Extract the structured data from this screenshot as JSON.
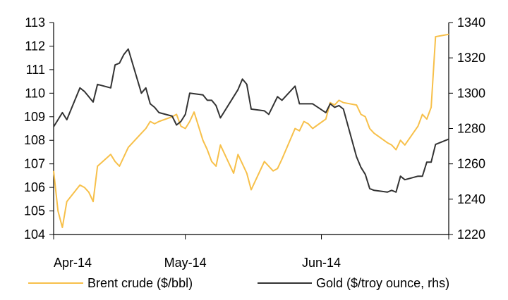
{
  "chart_data": {
    "type": "line",
    "x_ticks": [
      "Apr-14",
      "May-14",
      "Jun-14"
    ],
    "y_left": {
      "min": 104,
      "max": 113,
      "ticks": [
        104,
        105,
        106,
        107,
        108,
        109,
        110,
        111,
        112,
        113
      ]
    },
    "y_right": {
      "min": 1220,
      "max": 1340,
      "ticks": [
        1220,
        1240,
        1260,
        1280,
        1300,
        1320,
        1340
      ]
    },
    "grid": false,
    "legend_position": "bottom",
    "series": [
      {
        "name": "Brent crude ($/bbl)",
        "axis": "left",
        "color": "#f7c04a",
        "points": [
          [
            "2014-04-01",
            106.7
          ],
          [
            "2014-04-02",
            105.0
          ],
          [
            "2014-04-03",
            104.3
          ],
          [
            "2014-04-04",
            105.4
          ],
          [
            "2014-04-07",
            106.1
          ],
          [
            "2014-04-08",
            106.0
          ],
          [
            "2014-04-09",
            105.8
          ],
          [
            "2014-04-10",
            105.4
          ],
          [
            "2014-04-11",
            106.9
          ],
          [
            "2014-04-14",
            107.4
          ],
          [
            "2014-04-15",
            107.1
          ],
          [
            "2014-04-16",
            106.9
          ],
          [
            "2014-04-17",
            107.3
          ],
          [
            "2014-04-18",
            107.7
          ],
          [
            "2014-04-21",
            108.3
          ],
          [
            "2014-04-22",
            108.5
          ],
          [
            "2014-04-23",
            108.8
          ],
          [
            "2014-04-24",
            108.7
          ],
          [
            "2014-04-25",
            108.8
          ],
          [
            "2014-04-28",
            109.0
          ],
          [
            "2014-04-29",
            109.1
          ],
          [
            "2014-04-30",
            108.6
          ],
          [
            "2014-05-01",
            108.5
          ],
          [
            "2014-05-02",
            108.8
          ],
          [
            "2014-05-03",
            109.2
          ],
          [
            "2014-05-05",
            108.0
          ],
          [
            "2014-05-06",
            107.6
          ],
          [
            "2014-05-07",
            107.1
          ],
          [
            "2014-05-08",
            106.9
          ],
          [
            "2014-05-09",
            107.8
          ],
          [
            "2014-05-12",
            106.6
          ],
          [
            "2014-05-13",
            107.4
          ],
          [
            "2014-05-14",
            107.0
          ],
          [
            "2014-05-15",
            106.6
          ],
          [
            "2014-05-16",
            105.9
          ],
          [
            "2014-05-19",
            107.1
          ],
          [
            "2014-05-20",
            106.9
          ],
          [
            "2014-05-21",
            106.7
          ],
          [
            "2014-05-22",
            106.8
          ],
          [
            "2014-05-23",
            107.2
          ],
          [
            "2014-05-26",
            108.5
          ],
          [
            "2014-05-27",
            108.4
          ],
          [
            "2014-05-28",
            108.8
          ],
          [
            "2014-05-29",
            108.7
          ],
          [
            "2014-05-30",
            108.5
          ],
          [
            "2014-06-02",
            108.9
          ],
          [
            "2014-06-03",
            109.6
          ],
          [
            "2014-06-04",
            109.5
          ],
          [
            "2014-06-05",
            109.7
          ],
          [
            "2014-06-06",
            109.6
          ],
          [
            "2014-06-09",
            109.5
          ],
          [
            "2014-06-10",
            109.1
          ],
          [
            "2014-06-11",
            109.0
          ],
          [
            "2014-06-12",
            108.5
          ],
          [
            "2014-06-13",
            108.3
          ],
          [
            "2014-06-16",
            107.9
          ],
          [
            "2014-06-17",
            107.8
          ],
          [
            "2014-06-18",
            107.6
          ],
          [
            "2014-06-19",
            108.0
          ],
          [
            "2014-06-20",
            107.8
          ],
          [
            "2014-06-23",
            108.6
          ],
          [
            "2014-06-24",
            109.1
          ],
          [
            "2014-06-25",
            108.9
          ],
          [
            "2014-06-26",
            109.4
          ],
          [
            "2014-06-27",
            112.4
          ],
          [
            "2014-06-30",
            112.5
          ]
        ]
      },
      {
        "name": "Gold ($/troy ounce, rhs)",
        "axis": "right",
        "color": "#333333",
        "points": [
          [
            "2014-04-01",
            1281
          ],
          [
            "2014-04-02",
            1285
          ],
          [
            "2014-04-03",
            1289
          ],
          [
            "2014-04-04",
            1285
          ],
          [
            "2014-04-07",
            1303
          ],
          [
            "2014-04-08",
            1301
          ],
          [
            "2014-04-09",
            1298
          ],
          [
            "2014-04-10",
            1295
          ],
          [
            "2014-04-11",
            1305
          ],
          [
            "2014-04-14",
            1303
          ],
          [
            "2014-04-15",
            1316
          ],
          [
            "2014-04-16",
            1317
          ],
          [
            "2014-04-17",
            1322
          ],
          [
            "2014-04-18",
            1325
          ],
          [
            "2014-04-21",
            1300
          ],
          [
            "2014-04-22",
            1303
          ],
          [
            "2014-04-23",
            1294
          ],
          [
            "2014-04-24",
            1292
          ],
          [
            "2014-04-25",
            1289
          ],
          [
            "2014-04-28",
            1287
          ],
          [
            "2014-04-29",
            1282
          ],
          [
            "2014-04-30",
            1284
          ],
          [
            "2014-05-01",
            1288
          ],
          [
            "2014-05-02",
            1300
          ],
          [
            "2014-05-05",
            1299
          ],
          [
            "2014-05-06",
            1296
          ],
          [
            "2014-05-07",
            1296
          ],
          [
            "2014-05-08",
            1293
          ],
          [
            "2014-05-09",
            1286
          ],
          [
            "2014-05-12",
            1298
          ],
          [
            "2014-05-13",
            1302
          ],
          [
            "2014-05-14",
            1308
          ],
          [
            "2014-05-15",
            1305
          ],
          [
            "2014-05-16",
            1291
          ],
          [
            "2014-05-19",
            1290
          ],
          [
            "2014-05-20",
            1288
          ],
          [
            "2014-05-21",
            1293
          ],
          [
            "2014-05-22",
            1298
          ],
          [
            "2014-05-23",
            1296
          ],
          [
            "2014-05-26",
            1304
          ],
          [
            "2014-05-27",
            1294
          ],
          [
            "2014-05-28",
            1294
          ],
          [
            "2014-05-29",
            1294
          ],
          [
            "2014-05-30",
            1294
          ],
          [
            "2014-06-02",
            1289
          ],
          [
            "2014-06-03",
            1294
          ],
          [
            "2014-06-04",
            1292
          ],
          [
            "2014-06-05",
            1293
          ],
          [
            "2014-06-06",
            1291
          ],
          [
            "2014-06-09",
            1264
          ],
          [
            "2014-06-10",
            1258
          ],
          [
            "2014-06-11",
            1254
          ],
          [
            "2014-06-12",
            1246
          ],
          [
            "2014-06-13",
            1245
          ],
          [
            "2014-06-16",
            1244
          ],
          [
            "2014-06-17",
            1245
          ],
          [
            "2014-06-18",
            1244
          ],
          [
            "2014-06-19",
            1253
          ],
          [
            "2014-06-20",
            1251
          ],
          [
            "2014-06-23",
            1253
          ],
          [
            "2014-06-24",
            1253
          ],
          [
            "2014-06-25",
            1261
          ],
          [
            "2014-06-26",
            1261
          ],
          [
            "2014-06-27",
            1271
          ],
          [
            "2014-06-30",
            1274
          ]
        ]
      }
    ]
  }
}
